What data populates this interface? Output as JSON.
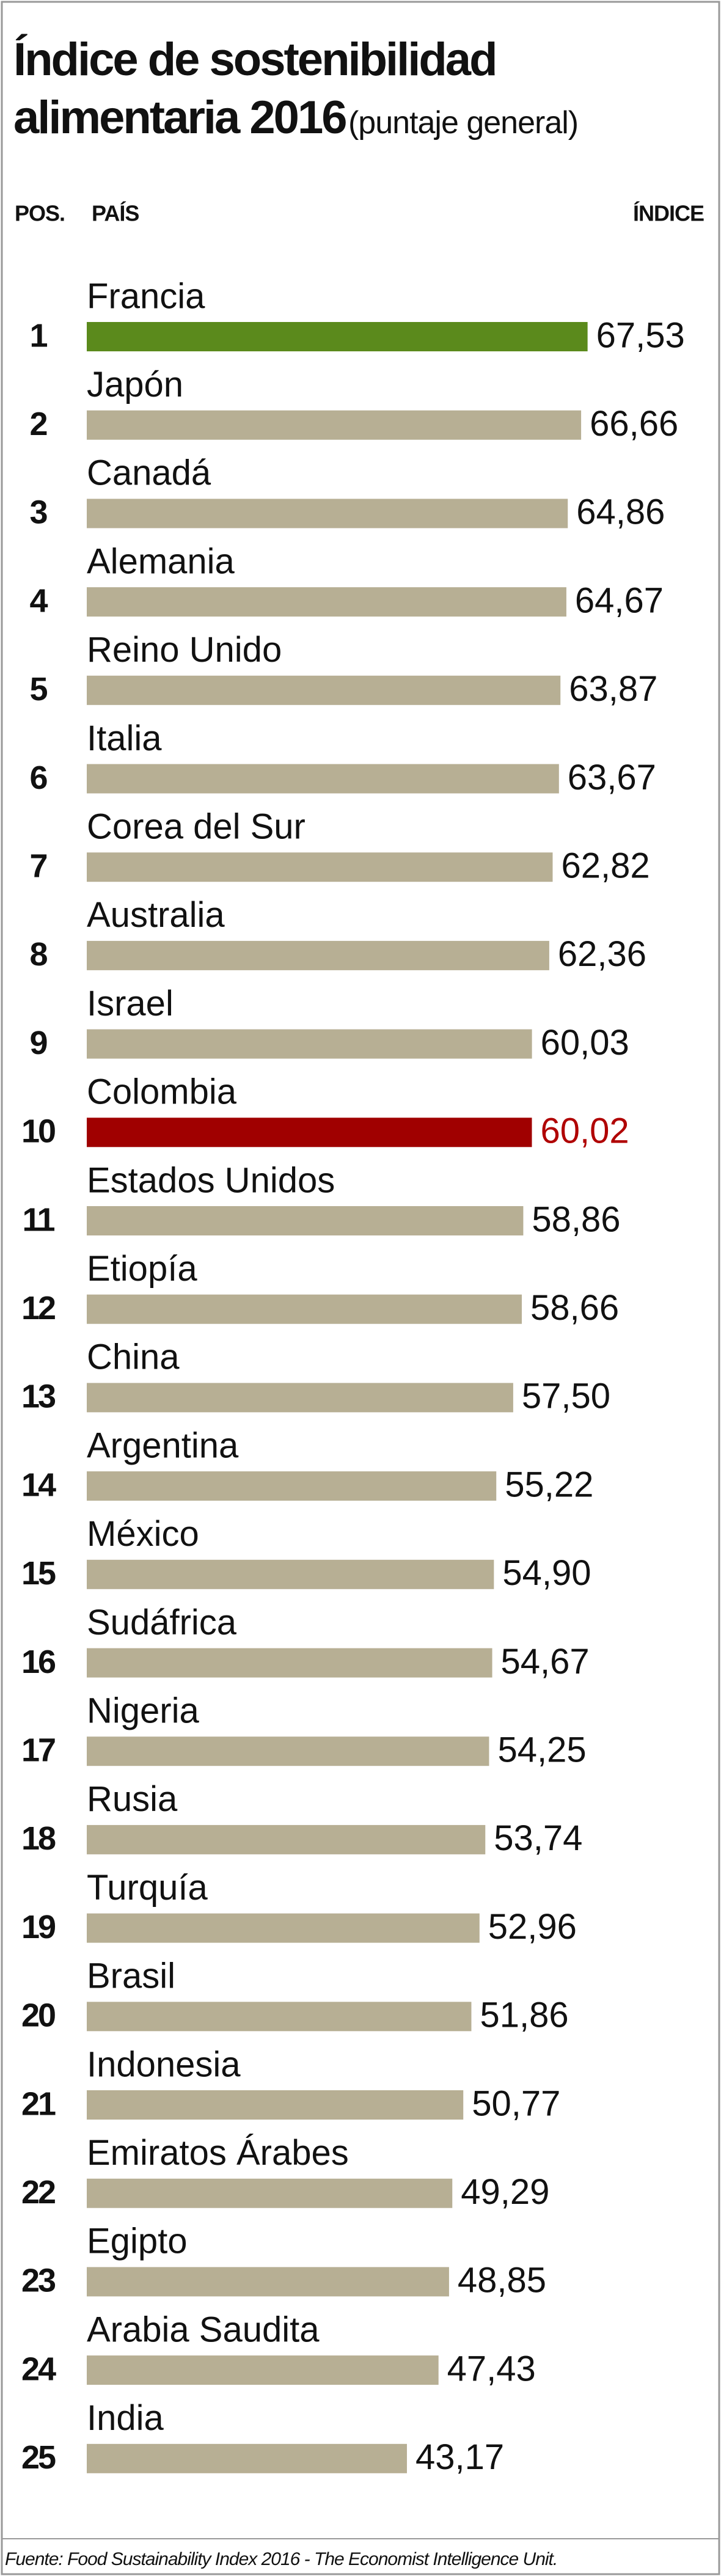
{
  "chart_data": {
    "type": "bar",
    "title": "Índice de sostenibilidad alimentaria 2016",
    "subtitle": "(puntaje general)",
    "column_headers": {
      "pos": "POS.",
      "country": "PAÍS",
      "index": "ÍNDICE"
    },
    "positions": [
      "1",
      "2",
      "3",
      "4",
      "5",
      "6",
      "7",
      "8",
      "9",
      "10",
      "11",
      "12",
      "13",
      "14",
      "15",
      "16",
      "17",
      "18",
      "19",
      "20",
      "21",
      "22",
      "23",
      "24",
      "25"
    ],
    "categories": [
      "Francia",
      "Japón",
      "Canadá",
      "Alemania",
      "Reino Unido",
      "Italia",
      "Corea del Sur",
      "Australia",
      "Israel",
      "Colombia",
      "Estados Unidos",
      "Etiopía",
      "China",
      "Argentina",
      "México",
      "Sudáfrica",
      "Nigeria",
      "Rusia",
      "Turquía",
      "Brasil",
      "Indonesia",
      "Emiratos Árabes",
      "Egipto",
      "Arabia Saudita",
      "India"
    ],
    "values": [
      67.53,
      66.66,
      64.86,
      64.67,
      63.87,
      63.67,
      62.82,
      62.36,
      60.03,
      60.02,
      58.86,
      58.66,
      57.5,
      55.22,
      54.9,
      54.67,
      54.25,
      53.74,
      52.96,
      51.86,
      50.77,
      49.29,
      48.85,
      47.43,
      43.17
    ],
    "value_labels": [
      "67,53",
      "66,66",
      "64,86",
      "64,67",
      "63,87",
      "63,67",
      "62,82",
      "62,36",
      "60,03",
      "60,02",
      "58,86",
      "58,66",
      "57,50",
      "55,22",
      "54,90",
      "54,67",
      "54,25",
      "53,74",
      "52,96",
      "51,86",
      "50,77",
      "49,29",
      "48,85",
      "47,43",
      "43,17"
    ],
    "colors": [
      "#5b8a1c",
      "#b7af94",
      "#b7af94",
      "#b7af94",
      "#b7af94",
      "#b7af94",
      "#b7af94",
      "#b7af94",
      "#b7af94",
      "#a00000",
      "#b7af94",
      "#b7af94",
      "#b7af94",
      "#b7af94",
      "#b7af94",
      "#b7af94",
      "#b7af94",
      "#b7af94",
      "#b7af94",
      "#b7af94",
      "#b7af94",
      "#b7af94",
      "#b7af94",
      "#b7af94",
      "#b7af94"
    ],
    "value_label_colors": [
      "#111",
      "#111",
      "#111",
      "#111",
      "#111",
      "#111",
      "#111",
      "#111",
      "#111",
      "#b00000",
      "#111",
      "#111",
      "#111",
      "#111",
      "#111",
      "#111",
      "#111",
      "#111",
      "#111",
      "#111",
      "#111",
      "#111",
      "#111",
      "#111",
      "#111"
    ],
    "xlim": [
      0,
      80
    ],
    "source": "Fuente: Food Sustainability Index 2016 - The Economist Intelligence Unit."
  }
}
